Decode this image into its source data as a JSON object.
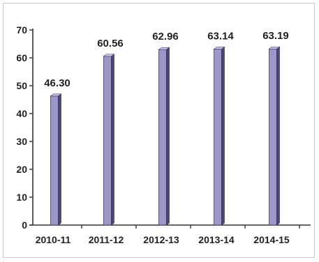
{
  "chart_data": {
    "type": "bar",
    "categories": [
      "2010-11",
      "2011-12",
      "2012-13",
      "2013-14",
      "2014-15"
    ],
    "values": [
      46.3,
      60.56,
      62.96,
      63.14,
      63.19
    ],
    "data_labels": [
      "46.30",
      "60.56",
      "62.96",
      "63.14",
      "63.19"
    ],
    "y_ticks": [
      "0",
      "10",
      "20",
      "30",
      "40",
      "50",
      "60",
      "70"
    ],
    "ylim": [
      0,
      70
    ],
    "title": "",
    "xlabel": "",
    "ylabel": "",
    "grid": false,
    "legend": "none",
    "bar_color": "#9b98c8",
    "bar_side_color": "#4a4778",
    "bar_top_color": "#c9c6e6"
  }
}
